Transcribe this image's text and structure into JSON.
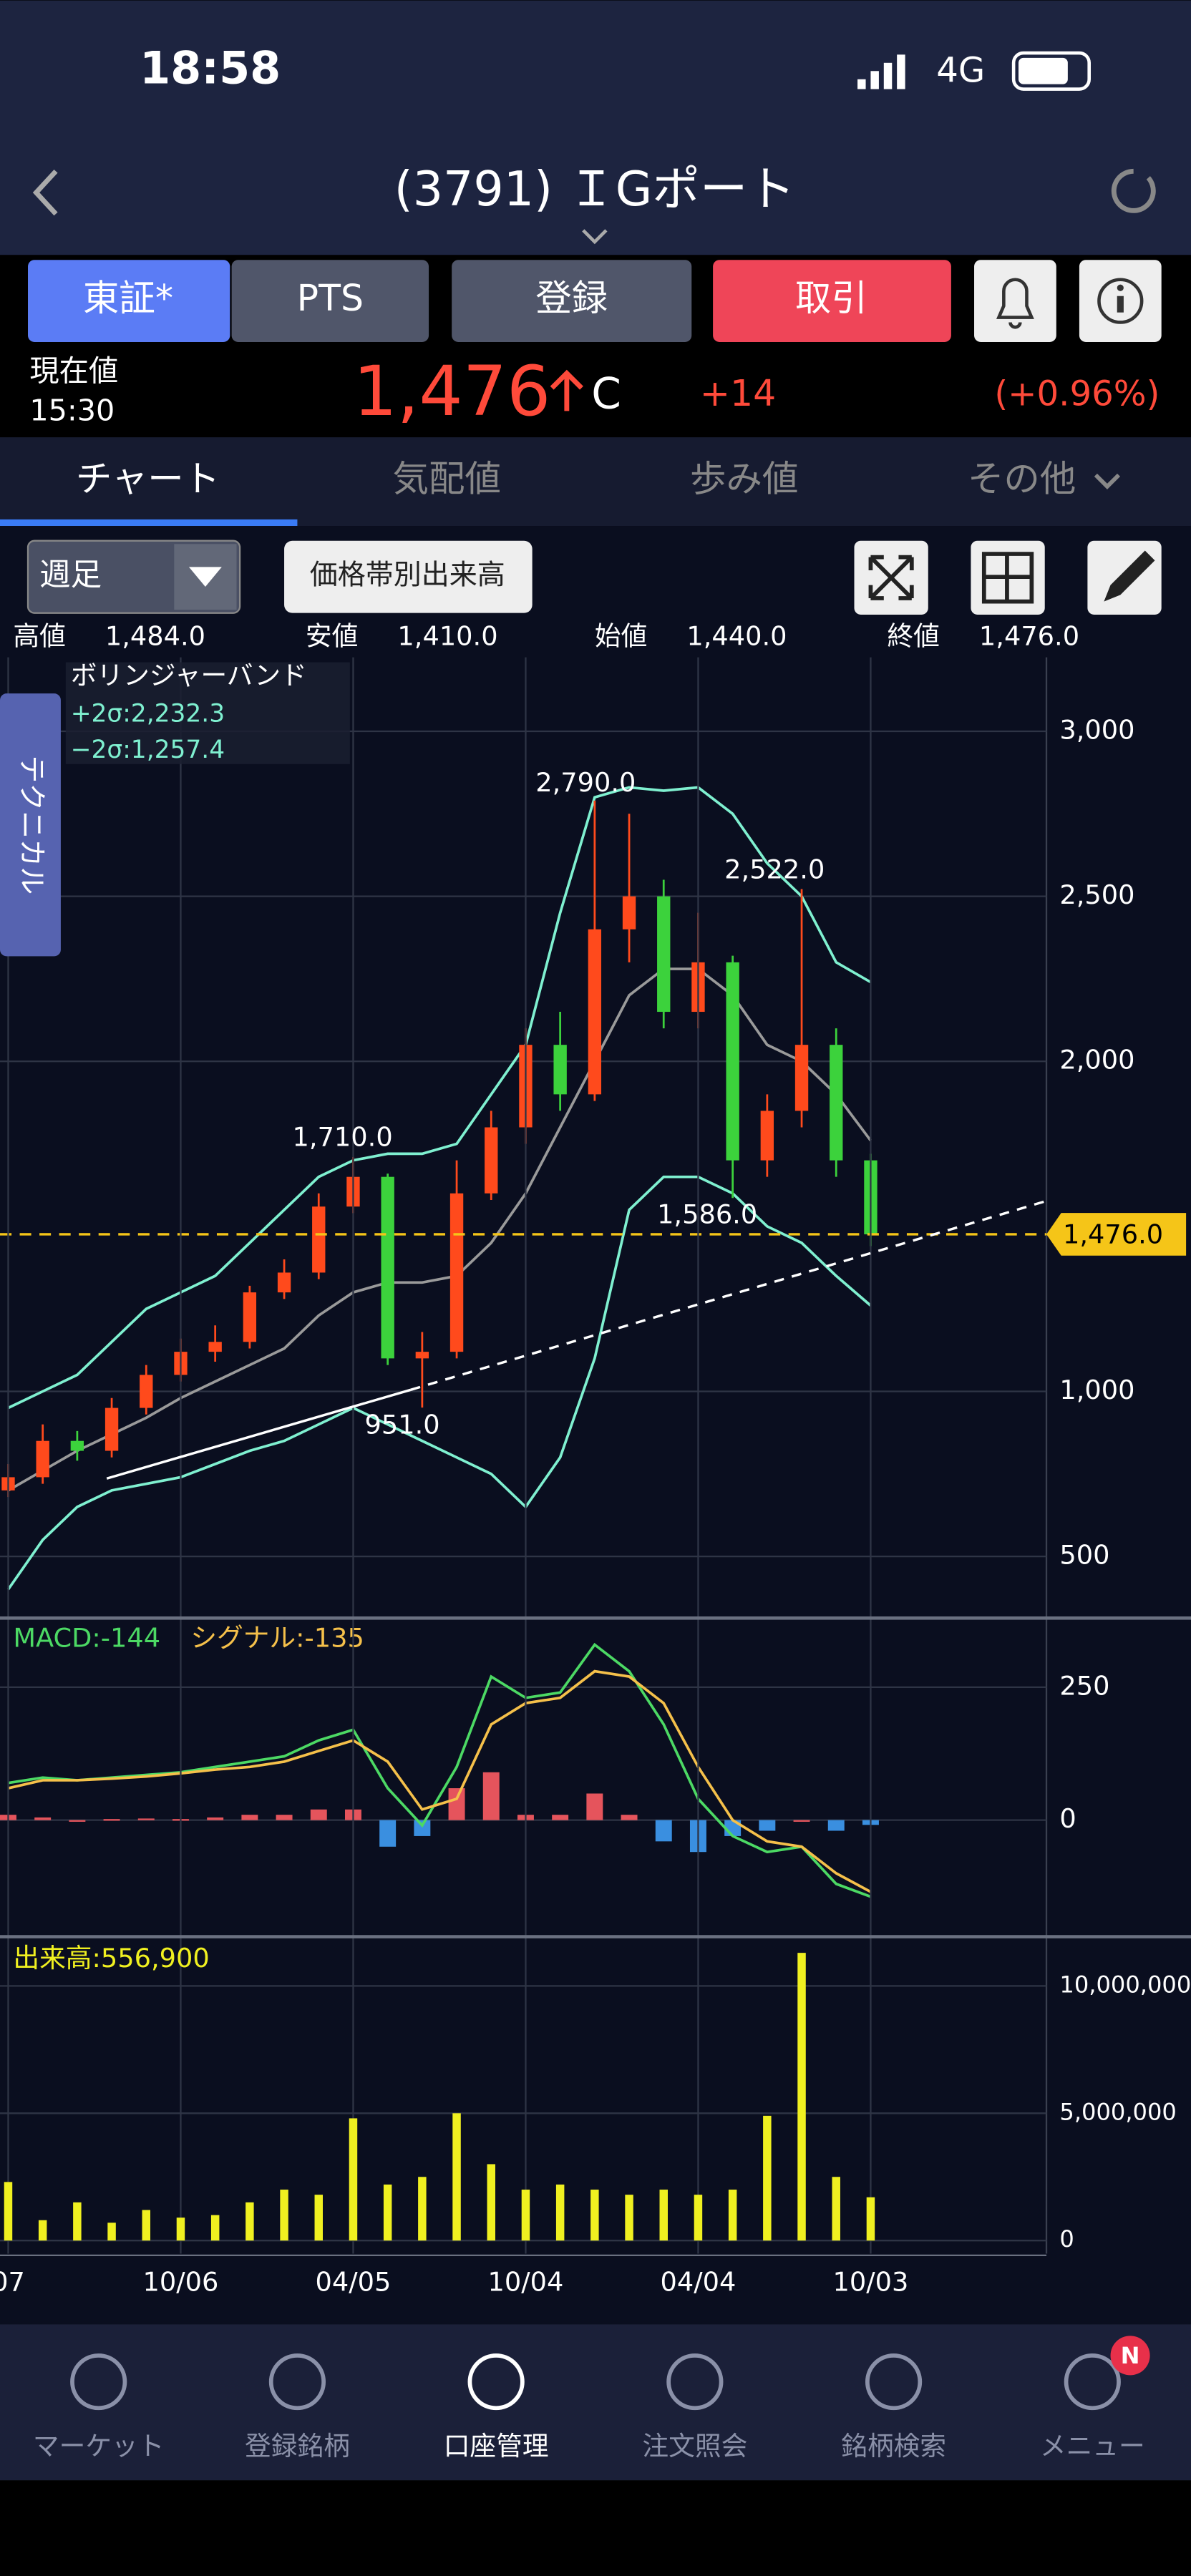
{
  "status_bar": {
    "time": "18:58",
    "network": "4G"
  },
  "header": {
    "title": "(3791) ＩGポート"
  },
  "buttons": [
    "東証*",
    "PTS",
    "登録",
    "取引"
  ],
  "quote": {
    "label": "現在値",
    "time": "15:30",
    "price": "1,476",
    "flag": "C",
    "change": "+14",
    "change_pct": "(+0.96%)"
  },
  "tabs": [
    "チャート",
    "気配値",
    "歩み値",
    "その他"
  ],
  "controls": {
    "period": "週足",
    "volume_profile": "価格帯別出来高",
    "side_tab": "テクニカル"
  },
  "ohlc": [
    {
      "label": "高値",
      "value": "1,484.0"
    },
    {
      "label": "安値",
      "value": "1,410.0"
    },
    {
      "label": "始値",
      "value": "1,440.0"
    },
    {
      "label": "終値",
      "value": "1,476.0"
    }
  ],
  "chart_data": [
    {
      "type": "candlestick",
      "up_color": "#ff4a1c",
      "down_color": "#3cd23c",
      "legend": {
        "title": "ボリンジャーバンド",
        "upper": "+2σ:2,232.3",
        "lower": "−2σ:1,257.4"
      },
      "annotations": [
        "2,790.0",
        "2,522.0",
        "1,710.0",
        "1,586.0",
        "951.0"
      ],
      "open": [
        700,
        740,
        850,
        820,
        950,
        1050,
        1120,
        1150,
        1300,
        1360,
        1560,
        1650,
        1100,
        1120,
        1600,
        1800,
        2050,
        1900,
        2400,
        2500,
        2150,
        2300,
        1700,
        1850,
        2050,
        1700
      ],
      "high": [
        780,
        900,
        880,
        980,
        1080,
        1160,
        1200,
        1320,
        1400,
        1600,
        1710,
        1660,
        1180,
        1700,
        1850,
        2100,
        2150,
        2790,
        2750,
        2550,
        2450,
        2320,
        1900,
        2522,
        2100,
        1720
      ],
      "low": [
        680,
        720,
        790,
        800,
        930,
        1030,
        1090,
        1130,
        1280,
        1340,
        1540,
        1080,
        951,
        1100,
        1580,
        1750,
        1850,
        1880,
        2300,
        2100,
        2100,
        1586,
        1650,
        1800,
        1650,
        1440
      ],
      "close": [
        740,
        850,
        820,
        950,
        1050,
        1120,
        1150,
        1300,
        1360,
        1560,
        1650,
        1100,
        1120,
        1600,
        1800,
        2050,
        1900,
        2400,
        2500,
        2150,
        2300,
        1700,
        1850,
        2050,
        1700,
        1476
      ],
      "bands": [
        {
          "name": "+2σ",
          "color": "#7ff0d0",
          "values": [
            950,
            1000,
            1050,
            1150,
            1250,
            1300,
            1350,
            1450,
            1550,
            1650,
            1700,
            1720,
            1720,
            1750,
            1900,
            2050,
            2450,
            2800,
            2830,
            2820,
            2830,
            2750,
            2600,
            2500,
            2300,
            2240
          ]
        },
        {
          "name": "MA",
          "color": "#9a9a9a",
          "values": [
            700,
            760,
            820,
            870,
            920,
            980,
            1030,
            1080,
            1130,
            1230,
            1300,
            1330,
            1330,
            1350,
            1450,
            1600,
            1800,
            2000,
            2200,
            2280,
            2280,
            2200,
            2050,
            2000,
            1900,
            1760
          ]
        },
        {
          "name": "−2σ",
          "color": "#7ff0d0",
          "values": [
            400,
            550,
            650,
            700,
            720,
            740,
            780,
            820,
            850,
            900,
            950,
            900,
            850,
            800,
            750,
            650,
            800,
            1100,
            1550,
            1650,
            1650,
            1600,
            1500,
            1450,
            1350,
            1260
          ]
        }
      ],
      "price_line": {
        "value": 1476,
        "label": "1,476.0",
        "color": "#f5c518"
      },
      "ylim": [
        338,
        3224
      ],
      "yticks": [
        {
          "value": 500,
          "label": "500"
        },
        {
          "value": 1000,
          "label": "1,000"
        },
        {
          "value": 2000,
          "label": "2,000"
        },
        {
          "value": 2500,
          "label": "2,500"
        },
        {
          "value": 3000,
          "label": "3,000"
        }
      ]
    },
    {
      "type": "line",
      "series": [
        {
          "name": "MACD:-144",
          "color": "#4cd964",
          "values": [
            70,
            80,
            75,
            80,
            85,
            90,
            100,
            110,
            120,
            150,
            170,
            60,
            -10,
            100,
            270,
            230,
            240,
            330,
            280,
            180,
            40,
            -30,
            -60,
            -50,
            -120,
            -144
          ]
        },
        {
          "name": "シグナル:-135",
          "color": "#f5c04a",
          "values": [
            60,
            75,
            75,
            78,
            82,
            88,
            95,
            100,
            110,
            130,
            150,
            110,
            20,
            40,
            180,
            220,
            230,
            280,
            270,
            220,
            100,
            0,
            -40,
            -50,
            -100,
            -135
          ]
        }
      ],
      "histogram": {
        "up_color": "#e5545c",
        "down_color": "#3a8fe0",
        "values": [
          10,
          5,
          0,
          2,
          3,
          2,
          5,
          10,
          10,
          20,
          20,
          -50,
          -30,
          60,
          90,
          10,
          10,
          50,
          10,
          -40,
          -60,
          -30,
          -20,
          0,
          -20,
          -9
        ]
      },
      "ylim": [
        -207,
        380
      ],
      "yticks": [
        0,
        250
      ]
    },
    {
      "type": "bar",
      "title": "出来高:556,900",
      "color": "#f0f020",
      "categories": [
        "07",
        null,
        null,
        null,
        null,
        "10/06",
        null,
        null,
        null,
        null,
        "04/05",
        null,
        null,
        null,
        null,
        "10/04",
        null,
        null,
        null,
        null,
        "04/04",
        null,
        null,
        null,
        null,
        "10/03"
      ],
      "values": [
        2300000,
        800000,
        1500000,
        700000,
        1200000,
        900000,
        1000000,
        1500000,
        2000000,
        1800000,
        4800000,
        2200000,
        2500000,
        5000000,
        3000000,
        2000000,
        2200000,
        2000000,
        1800000,
        2000000,
        1800000,
        2000000,
        4900000,
        11300000,
        2500000,
        1700000
      ],
      "ylim": [
        0,
        11740000
      ],
      "yticks": [
        0,
        {
          "value": 5000000,
          "label": "5,000,000"
        },
        {
          "value": 10000000,
          "label": "10,000,000"
        }
      ]
    }
  ],
  "nav": [
    "マーケット",
    "登録銘柄",
    "口座管理",
    "注文照会",
    "銘柄検索",
    "メニュー"
  ],
  "nav_badge": "N"
}
